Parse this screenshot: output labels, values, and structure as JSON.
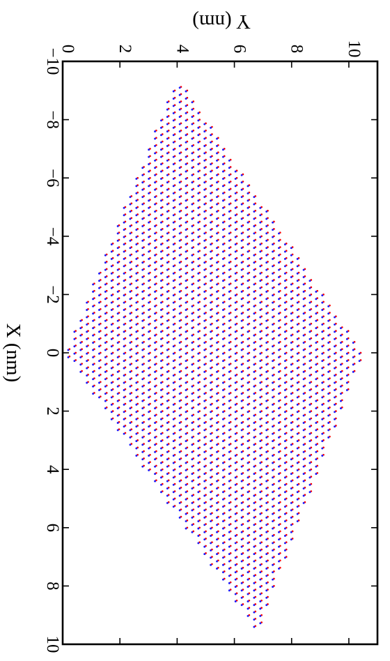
{
  "chart_data": {
    "type": "scatter",
    "title": "",
    "xlabel": "X (nm)",
    "ylabel": "Y (nm)",
    "xlim": [
      -10,
      10
    ],
    "ylim": [
      0,
      11
    ],
    "x_ticks": [
      -10,
      -8,
      -6,
      -4,
      -2,
      0,
      2,
      4,
      6,
      8,
      10
    ],
    "y_ticks": [
      0,
      2,
      4,
      6,
      8,
      10
    ],
    "x_tick_labels": [
      "−10",
      "−8",
      "−6",
      "−4",
      "−2",
      "0",
      "2",
      "4",
      "6",
      "8",
      "10"
    ],
    "y_tick_labels": [
      "0",
      "2",
      "4",
      "6",
      "8",
      "10"
    ],
    "grid": false,
    "legend": "none",
    "orientation": "rotated 90 degrees clockwise",
    "region_vertices": [
      {
        "x": -9.5,
        "y": 4.0
      },
      {
        "x": 0.0,
        "y": 10.5
      },
      {
        "x": 9.6,
        "y": 6.8
      },
      {
        "x": 0.0,
        "y": 0.1
      }
    ],
    "lattice_spacing_nm": 0.25,
    "series": [
      {
        "color": "#ff0000"
      },
      {
        "color": "#1c1cff"
      }
    ]
  }
}
